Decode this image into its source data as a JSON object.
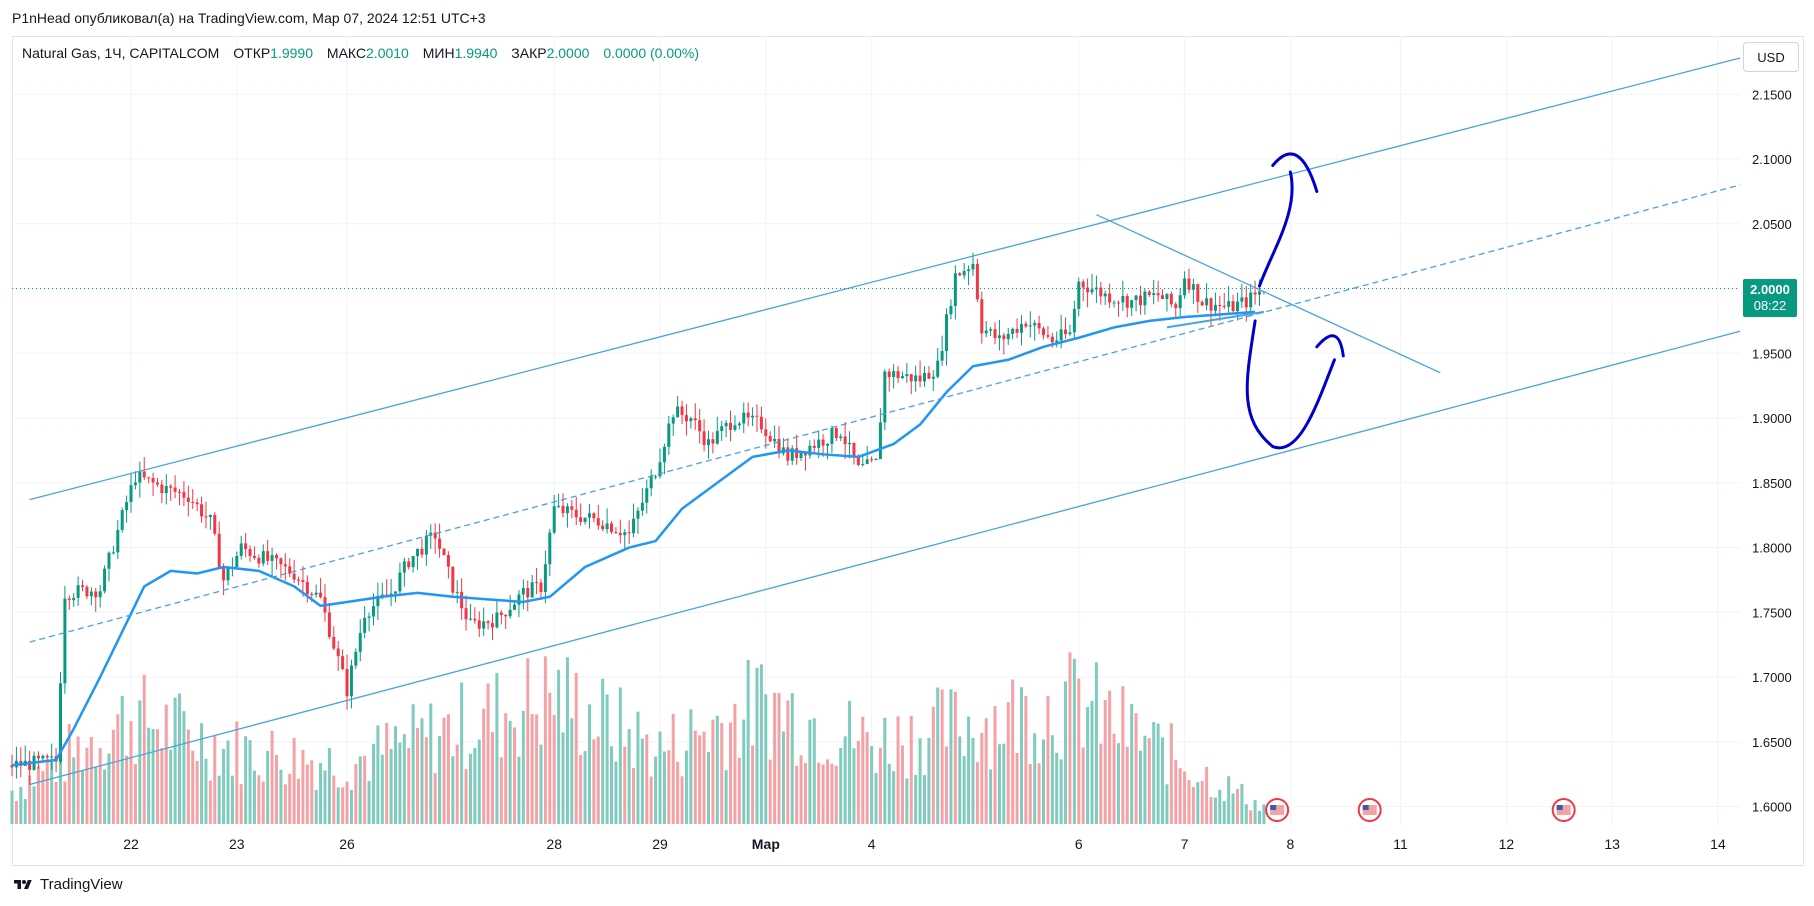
{
  "header": {
    "publisher_text": "P1nHead опубликовал(а) на TradingView.com, Мар 07, 2024 12:51 UTC+3"
  },
  "legend": {
    "symbol": "Natural Gas, 1Ч, CAPITALCOM",
    "open_label": "ОТКР",
    "open_value": "1.9990",
    "high_label": "МАКС",
    "high_value": "2.0010",
    "low_label": "МИН",
    "low_value": "1.9940",
    "close_label": "ЗАКР",
    "close_value": "2.0000",
    "change": "0.0000 (0.00%)"
  },
  "currency_button": "USD",
  "last_price": {
    "value": "2.0000",
    "countdown": "08:22"
  },
  "footer": {
    "brand": "TradingView"
  },
  "colors": {
    "up": "#089981",
    "down": "#f23645",
    "ma": "#2196f3",
    "channel": "#4aa3df",
    "drawing": "#0000cc",
    "grid": "#f0f3fa"
  },
  "chart_data": {
    "type": "candlestick",
    "y_axis": {
      "min": 1.585,
      "max": 2.195,
      "ticks": [
        1.6,
        1.65,
        1.7,
        1.75,
        1.8,
        1.85,
        1.9,
        1.95,
        2.0,
        2.05,
        2.1,
        2.15
      ],
      "tick_labels": [
        "1.6000",
        "1.6500",
        "1.7000",
        "1.7500",
        "1.8000",
        "1.8500",
        "1.9000",
        "1.9500",
        "2.0000",
        "2.0500",
        "2.1000",
        "2.1500"
      ]
    },
    "x_axis": {
      "tick_labels": [
        {
          "label": "22",
          "bar": 27
        },
        {
          "label": "23",
          "bar": 51
        },
        {
          "label": "26",
          "bar": 76
        },
        {
          "label": "28",
          "bar": 123
        },
        {
          "label": "29",
          "bar": 147
        },
        {
          "label": "Мар",
          "bar": 171
        },
        {
          "label": "4",
          "bar": 195
        },
        {
          "label": "6",
          "bar": 242
        },
        {
          "label": "7",
          "bar": 266
        },
        {
          "label": "8",
          "bar": 290
        },
        {
          "label": "11",
          "bar": 315
        },
        {
          "label": "12",
          "bar": 339
        },
        {
          "label": "13",
          "bar": 363
        },
        {
          "label": "14",
          "bar": 387
        }
      ],
      "bar_range": [
        0,
        392
      ]
    },
    "price_path": [
      [
        0,
        1.632
      ],
      [
        10,
        1.635
      ],
      [
        12,
        1.765
      ],
      [
        20,
        1.768
      ],
      [
        26,
        1.835
      ],
      [
        28,
        1.855
      ],
      [
        35,
        1.845
      ],
      [
        40,
        1.84
      ],
      [
        45,
        1.82
      ],
      [
        48,
        1.775
      ],
      [
        52,
        1.8
      ],
      [
        58,
        1.79
      ],
      [
        64,
        1.78
      ],
      [
        70,
        1.76
      ],
      [
        76,
        1.69
      ],
      [
        80,
        1.75
      ],
      [
        86,
        1.765
      ],
      [
        90,
        1.79
      ],
      [
        96,
        1.81
      ],
      [
        100,
        1.77
      ],
      [
        104,
        1.74
      ],
      [
        110,
        1.745
      ],
      [
        116,
        1.765
      ],
      [
        120,
        1.77
      ],
      [
        123,
        1.83
      ],
      [
        128,
        1.825
      ],
      [
        134,
        1.82
      ],
      [
        140,
        1.81
      ],
      [
        146,
        1.86
      ],
      [
        150,
        1.905
      ],
      [
        154,
        1.9
      ],
      [
        158,
        1.88
      ],
      [
        164,
        1.9
      ],
      [
        170,
        1.895
      ],
      [
        176,
        1.87
      ],
      [
        182,
        1.88
      ],
      [
        188,
        1.89
      ],
      [
        192,
        1.86
      ],
      [
        196,
        1.865
      ],
      [
        198,
        1.935
      ],
      [
        206,
        1.93
      ],
      [
        210,
        1.94
      ],
      [
        214,
        2.01
      ],
      [
        218,
        2.02
      ],
      [
        220,
        1.97
      ],
      [
        224,
        1.96
      ],
      [
        230,
        1.975
      ],
      [
        236,
        1.96
      ],
      [
        240,
        1.965
      ],
      [
        242,
        2.005
      ],
      [
        248,
        1.995
      ],
      [
        254,
        1.99
      ],
      [
        260,
        1.995
      ],
      [
        264,
        1.985
      ],
      [
        266,
        2.01
      ],
      [
        270,
        1.99
      ],
      [
        276,
        1.985
      ],
      [
        280,
        1.99
      ],
      [
        284,
        2.0
      ]
    ],
    "volume_path": [
      [
        0,
        0.25
      ],
      [
        27,
        0.8
      ],
      [
        51,
        0.55
      ],
      [
        76,
        0.45
      ],
      [
        123,
        0.95
      ],
      [
        147,
        0.55
      ],
      [
        171,
        0.9
      ],
      [
        195,
        0.6
      ],
      [
        218,
        0.75
      ],
      [
        242,
        0.9
      ],
      [
        266,
        0.45
      ],
      [
        284,
        0.12
      ]
    ],
    "moving_average": [
      [
        0,
        1.632
      ],
      [
        10,
        1.636
      ],
      [
        14,
        1.66
      ],
      [
        20,
        1.7
      ],
      [
        30,
        1.77
      ],
      [
        36,
        1.782
      ],
      [
        42,
        1.78
      ],
      [
        48,
        1.785
      ],
      [
        56,
        1.782
      ],
      [
        64,
        1.77
      ],
      [
        70,
        1.755
      ],
      [
        76,
        1.758
      ],
      [
        84,
        1.762
      ],
      [
        92,
        1.765
      ],
      [
        100,
        1.762
      ],
      [
        108,
        1.76
      ],
      [
        116,
        1.758
      ],
      [
        122,
        1.762
      ],
      [
        130,
        1.785
      ],
      [
        140,
        1.8
      ],
      [
        146,
        1.805
      ],
      [
        152,
        1.83
      ],
      [
        160,
        1.85
      ],
      [
        168,
        1.87
      ],
      [
        176,
        1.875
      ],
      [
        184,
        1.872
      ],
      [
        192,
        1.87
      ],
      [
        200,
        1.88
      ],
      [
        206,
        1.895
      ],
      [
        212,
        1.92
      ],
      [
        218,
        1.94
      ],
      [
        226,
        1.945
      ],
      [
        234,
        1.955
      ],
      [
        242,
        1.962
      ],
      [
        250,
        1.97
      ],
      [
        258,
        1.975
      ],
      [
        266,
        1.978
      ],
      [
        274,
        1.98
      ],
      [
        282,
        1.982
      ]
    ],
    "channel_upper": [
      [
        4,
        1.837
      ],
      [
        392,
        2.178
      ]
    ],
    "channel_lower": [
      [
        4,
        1.617
      ],
      [
        392,
        1.967
      ]
    ],
    "channel_mid": [
      [
        4,
        1.727
      ],
      [
        392,
        2.08
      ]
    ],
    "triangle_line": [
      [
        246,
        2.057
      ],
      [
        324,
        1.935
      ]
    ],
    "support_line": [
      [
        262,
        1.97
      ],
      [
        284,
        1.982
      ]
    ],
    "last_price_line": 2.0,
    "event_markers": [
      {
        "bar": 287
      },
      {
        "bar": 308
      },
      {
        "bar": 352
      }
    ],
    "annotations": "hand-drawn arrows: one upward toward upper channel, one downward-then-up toward lower channel"
  }
}
